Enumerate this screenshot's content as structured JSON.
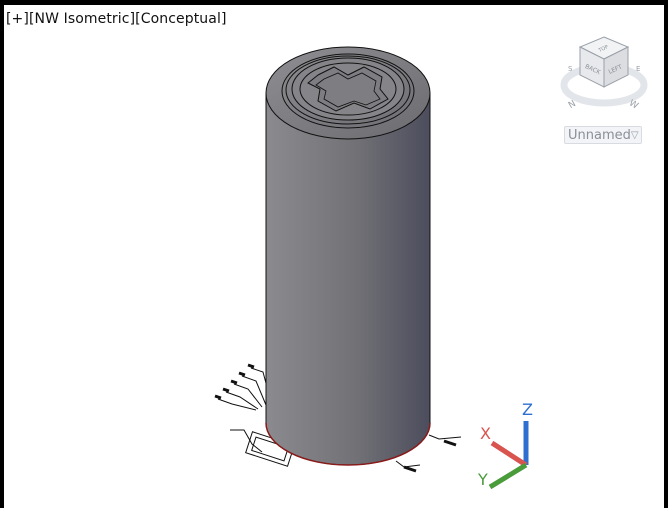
{
  "viewport": {
    "controls": {
      "plus": "[+]",
      "view": "[NW Isometric]",
      "style": "[Conceptual]"
    }
  },
  "viewcube": {
    "faces": {
      "top": "TOP",
      "back": "BACK",
      "left": "LEFT"
    },
    "compass": {
      "n": "N",
      "w": "W",
      "s": "S",
      "e": "E"
    }
  },
  "visual_style": {
    "label": "Unnamed",
    "icon": "triangle-down-icon"
  },
  "ucs": {
    "labels": {
      "x": "X",
      "y": "Y",
      "z": "Z"
    },
    "colors": {
      "x": "#d9534f",
      "y": "#4a9b3a",
      "z": "#2f6fd0"
    }
  },
  "model": {
    "body_colors": {
      "light": "#8a8a8e",
      "dark": "#4f5060",
      "edge": "#8b1a1a"
    }
  }
}
